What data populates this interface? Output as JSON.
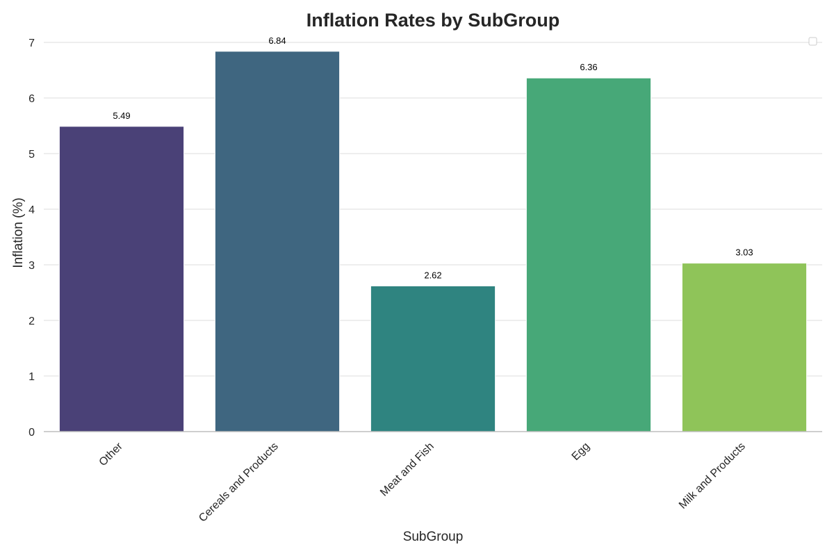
{
  "chart_data": {
    "type": "bar",
    "title": "Inflation Rates by SubGroup",
    "xlabel": "SubGroup",
    "ylabel": "Inflation (%)",
    "categories": [
      "Other",
      "Cereals and Products",
      "Meat and Fish",
      "Egg",
      "Milk and Products"
    ],
    "values": [
      5.49,
      6.84,
      2.62,
      6.36,
      3.03
    ],
    "data_labels": [
      "5.49",
      "6.84",
      "2.62",
      "6.36",
      "3.03"
    ],
    "colors": [
      "#4a4177",
      "#3f6680",
      "#2f8480",
      "#47a878",
      "#8fc459"
    ],
    "ylim": [
      0,
      7
    ],
    "yticks": [
      0,
      1,
      2,
      3,
      4,
      5,
      6,
      7
    ],
    "grid": true,
    "legend": "top-right (empty)"
  }
}
